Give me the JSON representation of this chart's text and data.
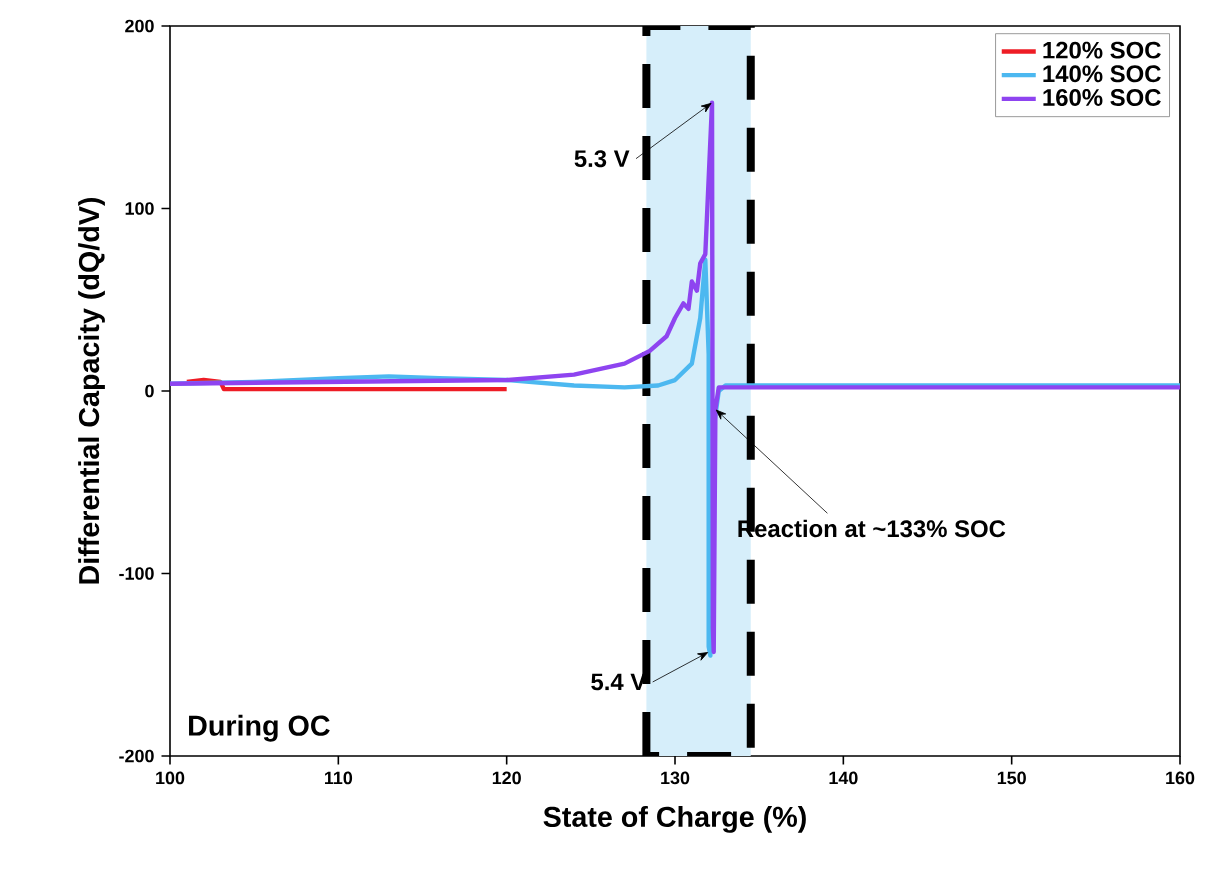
{
  "chart_data": {
    "type": "line",
    "xlabel": "State of Charge (%)",
    "ylabel": "Differential Capacity (dQ/dV)",
    "xlim": [
      100,
      160
    ],
    "ylim": [
      -200,
      200
    ],
    "xticks": [
      100,
      110,
      120,
      130,
      140,
      150,
      160
    ],
    "yticks": [
      -200,
      -100,
      0,
      100,
      200
    ],
    "legend": "top right",
    "grid": false,
    "bands": [
      {
        "axis": "x",
        "from": 128.3,
        "to": 134.5,
        "color": "#d6eefa"
      }
    ],
    "annotations": [
      {
        "text": "5.3 V",
        "x": 132.2,
        "y": 158
      },
      {
        "text": "5.4 V",
        "x": 132.0,
        "y": -143
      },
      {
        "text": "Reaction at ~133% SOC",
        "x": 132.4,
        "y": -10
      },
      "During OC"
    ],
    "series": [
      {
        "name": "120% SOC",
        "color": "#ee1c25",
        "x": [
          101,
          102,
          103,
          103.2,
          110,
          115,
          120
        ],
        "values": [
          5,
          6,
          5,
          1,
          1,
          1,
          1
        ]
      },
      {
        "name": "140% SOC",
        "color": "#4cb8f0",
        "x": [
          100,
          105,
          110,
          113,
          116,
          120,
          124,
          127,
          129,
          130,
          131,
          131.5,
          131.8,
          132,
          132.0,
          132.1,
          132.3,
          132.6,
          133,
          140,
          160
        ],
        "values": [
          4,
          5,
          7,
          8,
          7,
          6,
          3,
          2,
          3,
          6,
          15,
          40,
          72,
          20,
          -140,
          -145,
          -20,
          0,
          3,
          3,
          3
        ]
      },
      {
        "name": "160% SOC",
        "color": "#8e44f0",
        "x": [
          100,
          110,
          120,
          124,
          127,
          128.5,
          129.5,
          130,
          130.5,
          130.8,
          131,
          131.3,
          131.5,
          131.8,
          132.2,
          132.25,
          132.3,
          132.4,
          132.6,
          140,
          160
        ],
        "values": [
          4,
          5,
          6,
          9,
          15,
          22,
          30,
          40,
          48,
          45,
          60,
          55,
          70,
          75,
          158,
          -130,
          -143,
          -10,
          2,
          2,
          2
        ]
      }
    ]
  }
}
